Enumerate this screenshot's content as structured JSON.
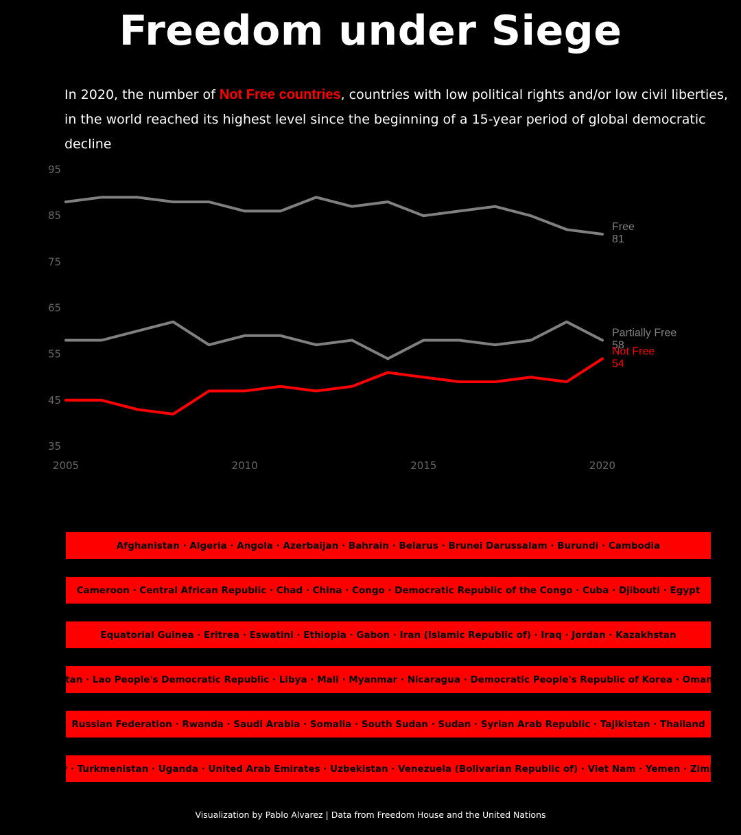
{
  "title": "Freedom under Siege",
  "subtitle": {
    "part1": "In 2020, the number of ",
    "highlight": "Not Free countries",
    "part2": ", countries with low political rights and/or low civil liberties,",
    "line2": "in the world reached its highest level since the beginning of a 15-year period of global democratic decline"
  },
  "colors": {
    "background": "#000000",
    "free": "#808080",
    "partially_free": "#808080",
    "not_free": "#ff0000",
    "axis_text": "#666666"
  },
  "chart_data": {
    "type": "line",
    "x": [
      2005,
      2006,
      2007,
      2008,
      2009,
      2010,
      2011,
      2012,
      2013,
      2014,
      2015,
      2016,
      2017,
      2018,
      2019,
      2020
    ],
    "xticks": [
      2005,
      2010,
      2015,
      2020
    ],
    "yticks": [
      35,
      45,
      55,
      65,
      75,
      85,
      95
    ],
    "ylim": [
      35,
      95
    ],
    "xlim": [
      2005,
      2020
    ],
    "grid": false,
    "series": [
      {
        "name": "Free",
        "color": "#808080",
        "end_label": "81",
        "values": [
          88,
          89,
          89,
          88,
          88,
          86,
          86,
          89,
          87,
          88,
          85,
          86,
          87,
          85,
          82,
          81
        ]
      },
      {
        "name": "Partially Free",
        "color": "#808080",
        "end_label": "58",
        "values": [
          58,
          58,
          60,
          62,
          57,
          59,
          59,
          57,
          58,
          54,
          58,
          58,
          57,
          58,
          62,
          58
        ]
      },
      {
        "name": "Not Free",
        "color": "#ff0000",
        "end_label": "54",
        "values": [
          45,
          45,
          43,
          42,
          47,
          47,
          48,
          47,
          48,
          51,
          50,
          49,
          49,
          50,
          49,
          54
        ]
      }
    ]
  },
  "countries": [
    "Afghanistan · Algeria · Angola · Azerbaijan · Bahrain · Belarus · Brunei Darussalam · Burundi · Cambodia",
    "Cameroon · Central African Republic · Chad · China · Congo · Democratic Republic of the Congo · Cuba · Djibouti · Egypt",
    "Equatorial Guinea · Eritrea · Eswatini · Ethiopia · Gabon · Iran (Islamic Republic of) · Iraq · Jordan · Kazakhstan",
    "Kyrgyzstan · Lao People's Democratic Republic · Libya · Mali · Myanmar · Nicaragua · Democratic People's Republic of Korea · Oman · Qatar",
    "Russian Federation · Rwanda · Saudi Arabia · Somalia · South Sudan · Sudan · Syrian Arab Republic · Tajikistan · Thailand",
    "Turkey · Turkmenistan · Uganda · United Arab Emirates · Uzbekistan · Venezuela (Bolivarian Republic of) · Viet Nam · Yemen · Zimbabwe"
  ],
  "footer": "Visualization by Pablo Alvarez | Data from Freedom House and the United Nations"
}
